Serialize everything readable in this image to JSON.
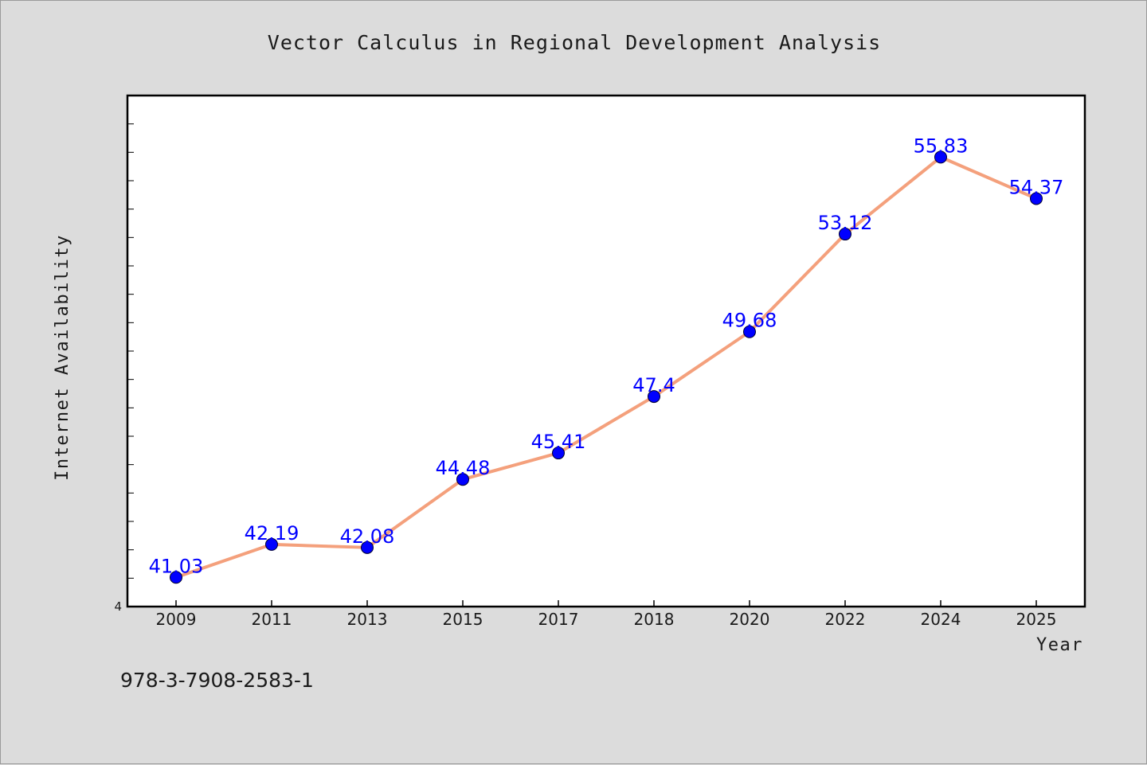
{
  "chart_data": {
    "type": "line",
    "title": "Vector Calculus in Regional Development Analysis",
    "xlabel": "Year",
    "ylabel": "Internet Availability",
    "categories": [
      "2009",
      "2011",
      "2013",
      "2015",
      "2017",
      "2018",
      "2020",
      "2022",
      "2024",
      "2025"
    ],
    "series": [
      {
        "values": [
          41.03,
          42.19,
          42.08,
          44.48,
          45.41,
          47.4,
          49.68,
          53.12,
          55.83,
          54.37
        ],
        "labels": [
          "41.03",
          "42.19",
          "42.08",
          "44.48",
          "45.41",
          "47.4",
          "49.68",
          "53.12",
          "55.83",
          "54.37"
        ]
      }
    ],
    "ylim": [
      40,
      58
    ],
    "y_min_label": "4",
    "grid": false,
    "legend": "none",
    "colors": {
      "line": "#f4a07c",
      "marker": "#0000ff",
      "data_label": "#0000ff",
      "plot_background": "#ffffff",
      "page_background": "#dcdcdc"
    }
  },
  "footer": {
    "isbn": "978-3-7908-2583-1"
  }
}
